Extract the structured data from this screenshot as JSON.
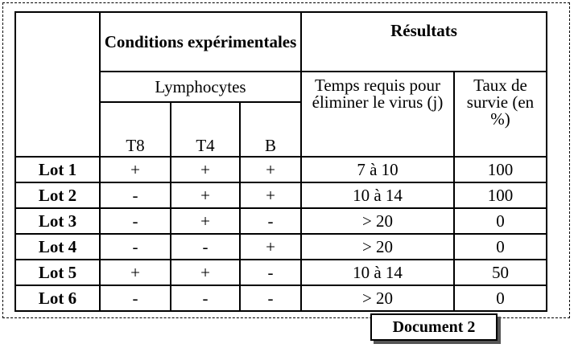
{
  "table": {
    "header_conditions": "Conditions expérimentales",
    "header_results": "Résultats",
    "header_lymphocytes": "Lymphocytes",
    "header_time": "Temps requis pour éliminer le virus (j)",
    "header_survival": "Taux de survie (en %)",
    "col_t8": "T8",
    "col_t4": "T4",
    "col_b": "B",
    "rows": [
      {
        "lot": "Lot 1",
        "t8": "+",
        "t4": "+",
        "b": "+",
        "time": "7 à 10",
        "survival": "100"
      },
      {
        "lot": "Lot 2",
        "t8": "-",
        "t4": "+",
        "b": "+",
        "time": "10 à 14",
        "survival": "100"
      },
      {
        "lot": "Lot 3",
        "t8": "-",
        "t4": "+",
        "b": "-",
        "time": "> 20",
        "survival": "0"
      },
      {
        "lot": "Lot 4",
        "t8": "-",
        "t4": "-",
        "b": "+",
        "time": "> 20",
        "survival": "0"
      },
      {
        "lot": "Lot 5",
        "t8": "+",
        "t4": "+",
        "b": "-",
        "time": "10 à 14",
        "survival": "50"
      },
      {
        "lot": "Lot 6",
        "t8": "-",
        "t4": "-",
        "b": "-",
        "time": "> 20",
        "survival": "0"
      }
    ]
  },
  "caption": "Document 2"
}
